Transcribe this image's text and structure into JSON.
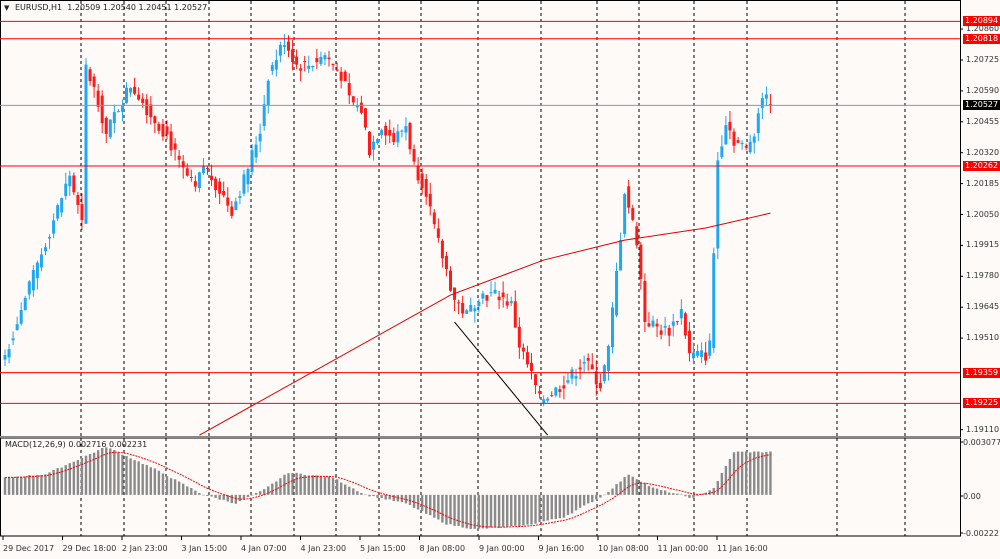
{
  "header": {
    "symbol": "EURUSD,H1",
    "open": "1.20509",
    "high": "1.20540",
    "low": "1.20451",
    "close": "1.20527"
  },
  "macd": {
    "label": "MACD(12,26,9)",
    "main": "0.002716",
    "signal": "0.002231",
    "ticks": [
      "0.003077",
      "0.00",
      "-0.002221"
    ]
  },
  "price_axis": [
    "1.20860",
    "1.20725",
    "1.20590",
    "1.20455",
    "1.20320",
    "1.20185",
    "1.20050",
    "1.19915",
    "1.19780",
    "1.19645",
    "1.19510",
    "1.19110"
  ],
  "levels": [
    {
      "price": "1.20894",
      "color": "#ff0000"
    },
    {
      "price": "1.20818",
      "color": "#ff0000"
    },
    {
      "price": "1.20262",
      "color": "#ff0000"
    },
    {
      "price": "1.19359",
      "color": "#ff0000"
    },
    {
      "price": "1.19225",
      "color": "#ff0000"
    }
  ],
  "current_price": "1.20527",
  "time_axis": [
    "29 Dec 2017",
    "29 Dec 18:00",
    "2 Jan 23:00",
    "3 Jan 15:00",
    "4 Jan 07:00",
    "4 Jan 23:00",
    "5 Jan 15:00",
    "8 Jan 08:00",
    "9 Jan 00:00",
    "9 Jan 16:00",
    "10 Jan 08:00",
    "11 Jan 00:00",
    "11 Jan 16:00"
  ],
  "colors": {
    "bull": "#1fa8f0",
    "bear": "#ff1a1a",
    "ma": "#e00000",
    "level": "#ff0000",
    "histogram": "#8a8a8a",
    "signal": "#ff0000"
  },
  "chart_data": {
    "type": "candlestick",
    "symbol": "EURUSD",
    "timeframe": "H1",
    "ylim": [
      1.1909,
      1.2095
    ],
    "price_path": [
      [
        0,
        1.19436
      ],
      [
        16,
        1.20223
      ],
      [
        19,
        1.20004
      ],
      [
        20,
        1.2069
      ],
      [
        23,
        1.2055
      ],
      [
        25,
        1.20397
      ],
      [
        27,
        1.20485
      ],
      [
        31,
        1.20616
      ],
      [
        33,
        1.20572
      ],
      [
        36,
        1.20485
      ],
      [
        40,
        1.20397
      ],
      [
        43,
        1.20266
      ],
      [
        47,
        1.20157
      ],
      [
        49,
        1.20266
      ],
      [
        53,
        1.20157
      ],
      [
        56,
        1.20069
      ],
      [
        59,
        1.20201
      ],
      [
        63,
        1.20419
      ],
      [
        65,
        1.20659
      ],
      [
        69,
        1.20812
      ],
      [
        72,
        1.20703
      ],
      [
        75,
        1.20703
      ],
      [
        79,
        1.20747
      ],
      [
        83,
        1.20659
      ],
      [
        85,
        1.2055
      ],
      [
        88,
        1.20506
      ],
      [
        90,
        1.20332
      ],
      [
        93,
        1.20441
      ],
      [
        96,
        1.20375
      ],
      [
        99,
        1.20441
      ],
      [
        101,
        1.20266
      ],
      [
        104,
        1.20157
      ],
      [
        106,
        1.19982
      ],
      [
        109,
        1.19807
      ],
      [
        111,
        1.19676
      ],
      [
        114,
        1.19611
      ],
      [
        117,
        1.19698
      ],
      [
        122,
        1.19698
      ],
      [
        125,
        1.19654
      ],
      [
        127,
        1.1948
      ],
      [
        130,
        1.19348
      ],
      [
        132,
        1.19239
      ],
      [
        136,
        1.19283
      ],
      [
        140,
        1.19348
      ],
      [
        143,
        1.19414
      ],
      [
        147,
        1.19305
      ],
      [
        149,
        1.19458
      ],
      [
        152,
        1.1996
      ],
      [
        153,
        1.20157
      ],
      [
        156,
        1.19938
      ],
      [
        158,
        1.19589
      ],
      [
        162,
        1.19545
      ],
      [
        164,
        1.19545
      ],
      [
        167,
        1.19632
      ],
      [
        169,
        1.19436
      ],
      [
        173,
        1.19436
      ],
      [
        174,
        1.1948
      ],
      [
        176,
        1.20288
      ],
      [
        178,
        1.20463
      ],
      [
        180,
        1.20375
      ],
      [
        183,
        1.20332
      ],
      [
        185,
        1.20419
      ],
      [
        187,
        1.20572
      ],
      [
        189,
        1.20527
      ]
    ],
    "moving_average": [
      [
        48,
        1.19086
      ],
      [
        110,
        1.19698
      ],
      [
        133,
        1.19851
      ],
      [
        153,
        1.19938
      ],
      [
        173,
        1.19991
      ],
      [
        189,
        1.20056
      ]
    ],
    "trendline": [
      [
        111,
        1.1958
      ],
      [
        134,
        1.19086
      ]
    ],
    "macd_path": [
      [
        0,
        0.001
      ],
      [
        10,
        0.0012
      ],
      [
        25,
        0.0028
      ],
      [
        37,
        0.0015
      ],
      [
        49,
        0.0
      ],
      [
        57,
        -0.0005
      ],
      [
        64,
        0.0003
      ],
      [
        70,
        0.0013
      ],
      [
        81,
        0.001
      ],
      [
        89,
        0.0
      ],
      [
        99,
        -0.0005
      ],
      [
        109,
        -0.0017
      ],
      [
        116,
        -0.002
      ],
      [
        128,
        -0.0018
      ],
      [
        138,
        -0.0013
      ],
      [
        148,
        0.0
      ],
      [
        154,
        0.0012
      ],
      [
        160,
        0.0004
      ],
      [
        170,
        -0.0002
      ],
      [
        175,
        0.0004
      ],
      [
        180,
        0.0025
      ],
      [
        189,
        0.0025
      ]
    ],
    "macd_ylim": [
      -0.002221,
      0.003077
    ]
  }
}
